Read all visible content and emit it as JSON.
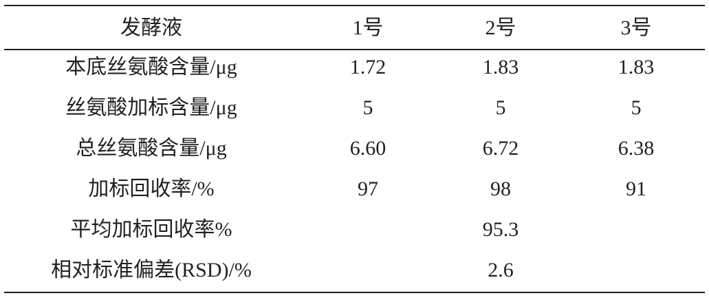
{
  "table": {
    "header": [
      "发酵液",
      "1号",
      "2号",
      "3号"
    ],
    "rows": [
      {
        "label": "本底丝氨酸含量/μg",
        "values": [
          "1.72",
          "1.83",
          "1.83"
        ]
      },
      {
        "label": "丝氨酸加标含量/μg",
        "values": [
          "5",
          "5",
          "5"
        ]
      },
      {
        "label": "总丝氨酸含量/μg",
        "values": [
          "6.60",
          "6.72",
          "6.38"
        ]
      },
      {
        "label": "加标回收率/%",
        "values": [
          "97",
          "98",
          "91"
        ]
      },
      {
        "label": "平均加标回收率%",
        "value": "95.3"
      },
      {
        "label": "相对标准偏差(RSD)/%",
        "value": "2.6"
      }
    ]
  }
}
